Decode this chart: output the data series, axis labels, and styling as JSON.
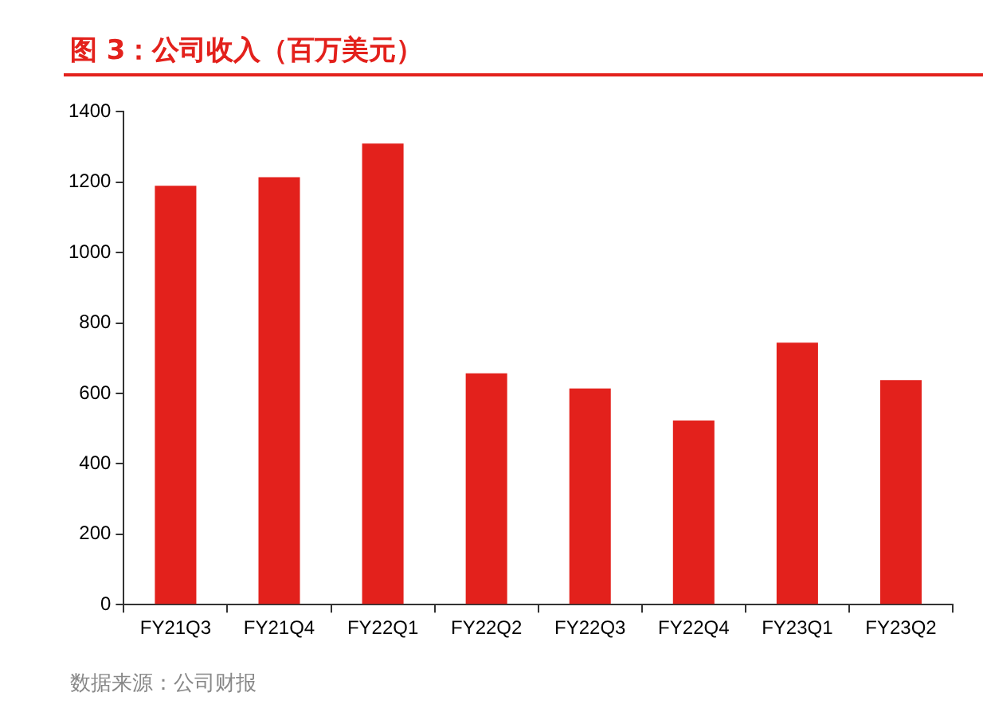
{
  "chart_data": {
    "type": "bar",
    "title": "图 3：公司收入（百万美元）",
    "categories": [
      "FY21Q3",
      "FY21Q4",
      "FY22Q1",
      "FY22Q2",
      "FY22Q3",
      "FY22Q4",
      "FY23Q1",
      "FY23Q2"
    ],
    "values": [
      1190,
      1214,
      1310,
      657,
      614,
      523,
      744,
      638
    ],
    "color": "#e3211c",
    "ylim": [
      0,
      1400
    ],
    "yticks": [
      0,
      200,
      400,
      600,
      800,
      1000,
      1200,
      1400
    ],
    "grid": false,
    "legend": false,
    "annotations": [
      "数据来源：公司财报"
    ]
  }
}
